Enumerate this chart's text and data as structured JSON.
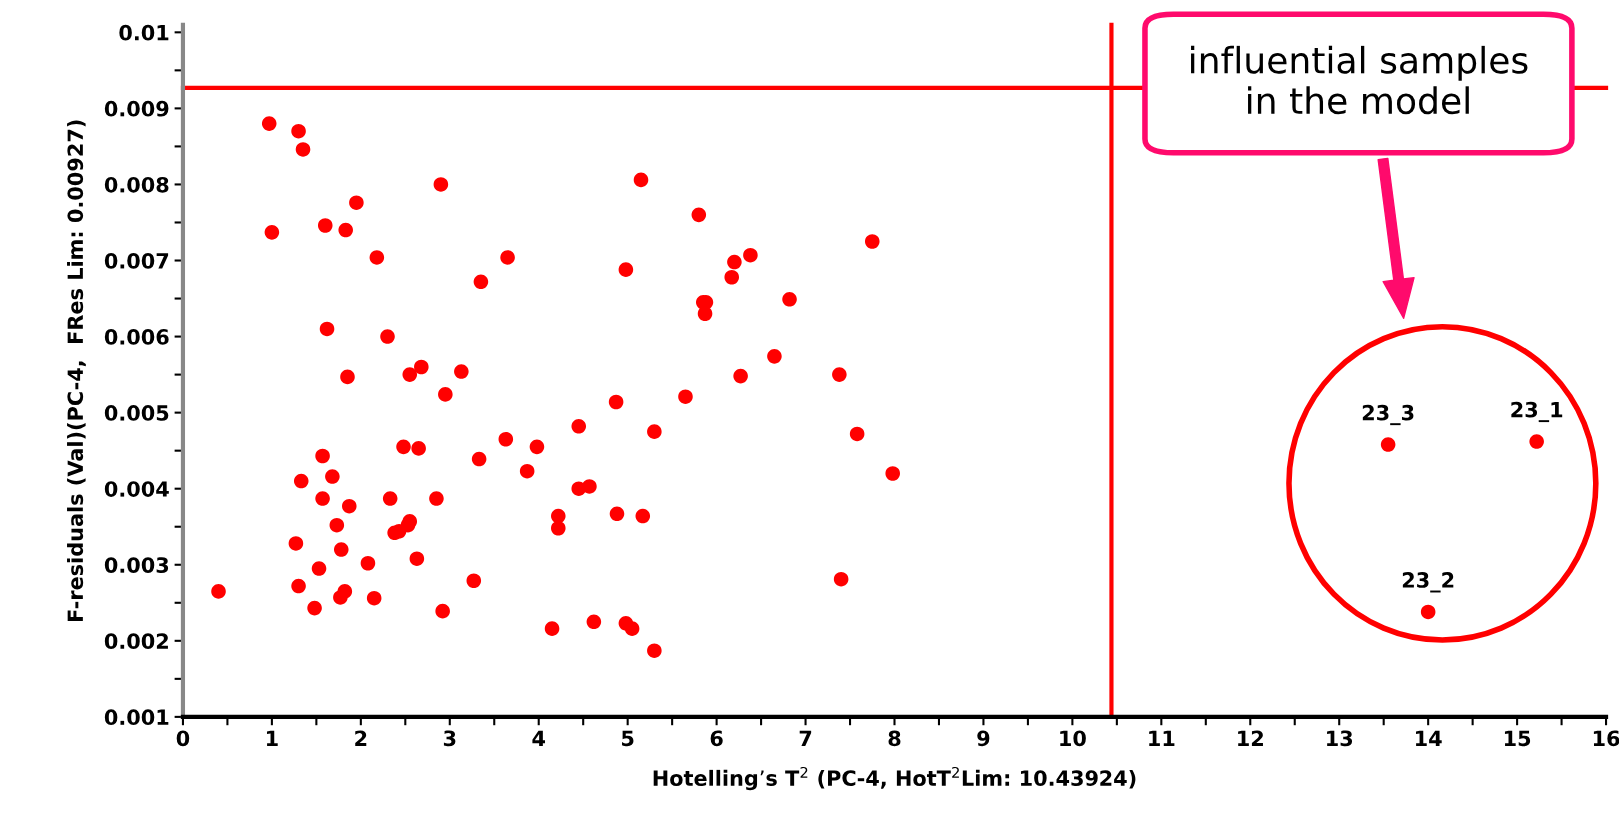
{
  "chart_data": {
    "type": "scatter",
    "xlabel": "Hotelling’s T$^{2}$ (PC-4, HotT$^{2}$Lim: 10.43924)",
    "ylabel": "F-residuals (Val)(PC-4,  FRes Lim: 0.00927)",
    "series": [
      {
        "color": "#ff0000",
        "x": [
          0.4,
          0.97,
          1.0,
          1.3,
          1.35,
          1.27,
          1.3,
          1.33,
          1.57,
          1.6,
          1.62,
          1.57,
          1.53,
          1.48,
          1.68,
          1.73,
          1.78,
          1.77,
          1.82,
          1.83,
          1.85,
          1.87,
          1.95,
          2.08,
          2.15,
          2.18,
          2.3,
          2.33,
          2.38,
          2.43,
          2.48,
          2.53,
          2.55,
          2.55,
          2.63,
          2.65,
          2.68,
          2.85,
          2.9,
          2.92,
          2.95,
          3.13,
          3.27,
          3.33,
          3.35,
          3.63,
          3.65,
          3.87,
          3.98,
          4.15,
          4.22,
          4.22,
          4.45,
          4.45,
          4.57,
          4.62,
          4.87,
          4.88,
          4.98,
          4.98,
          5.05,
          5.15,
          5.17,
          5.3,
          5.3,
          5.65,
          5.8,
          5.85,
          5.88,
          5.87,
          6.17,
          6.2,
          6.27,
          6.38,
          6.65,
          6.82,
          7.38,
          7.4,
          7.58,
          7.75,
          7.98,
          13.55,
          15.22,
          14.0
        ],
        "values": [
          0.00265,
          0.0088,
          0.00737,
          0.0087,
          0.00846,
          0.00328,
          0.00272,
          0.0041,
          0.00443,
          0.00746,
          0.0061,
          0.00387,
          0.00295,
          0.00243,
          0.00416,
          0.00352,
          0.0032,
          0.00257,
          0.00265,
          0.0074,
          0.00547,
          0.00377,
          0.00776,
          0.00302,
          0.00256,
          0.00704,
          0.006,
          0.00387,
          0.00342,
          0.00344,
          0.00455,
          0.00352,
          0.00357,
          0.0055,
          0.00308,
          0.00453,
          0.0056,
          0.00387,
          0.008,
          0.00239,
          0.00524,
          0.00554,
          0.00279,
          0.00439,
          0.00672,
          0.00465,
          0.00704,
          0.00423,
          0.00455,
          0.00216,
          0.00364,
          0.00348,
          0.00482,
          0.004,
          0.00403,
          0.00225,
          0.00514,
          0.00367,
          0.00688,
          0.00223,
          0.00216,
          0.00806,
          0.00364,
          0.00187,
          0.00475,
          0.00521,
          0.0076,
          0.00645,
          0.00645,
          0.0063,
          0.00678,
          0.00698,
          0.00548,
          0.00707,
          0.00574,
          0.00649,
          0.0055,
          0.00281,
          0.00472,
          0.00725,
          0.0042,
          0.00458,
          0.00462,
          0.00238
        ]
      }
    ],
    "marker": "circle",
    "xlim": [
      0,
      16
    ],
    "ylim": [
      0.001,
      0.0101
    ],
    "xticks": [
      0,
      {
        "value": 0.5,
        "label": null
      },
      1,
      {
        "value": 1.5,
        "label": null
      },
      2,
      {
        "value": 2.5,
        "label": null
      },
      3,
      {
        "value": 3.5,
        "label": null
      },
      4,
      {
        "value": 4.5,
        "label": null
      },
      5,
      {
        "value": 5.5,
        "label": null
      },
      6,
      {
        "value": 6.5,
        "label": null
      },
      7,
      {
        "value": 7.5,
        "label": null
      },
      8,
      {
        "value": 8.5,
        "label": null
      },
      9,
      {
        "value": 9.5,
        "label": null
      },
      10,
      {
        "value": 10.5,
        "label": null
      },
      11,
      {
        "value": 11.5,
        "label": null
      },
      12,
      {
        "value": 12.5,
        "label": null
      },
      13,
      {
        "value": 13.5,
        "label": null
      },
      14,
      {
        "value": 14.5,
        "label": null
      },
      15,
      {
        "value": 15.5,
        "label": null
      },
      16
    ],
    "yticks": [
      0.001,
      {
        "value": 0.0015,
        "label": null
      },
      0.002,
      {
        "value": 0.0025,
        "label": null
      },
      0.003,
      {
        "value": 0.0035,
        "label": null
      },
      0.004,
      {
        "value": 0.0045,
        "label": null
      },
      0.005,
      {
        "value": 0.0055,
        "label": null
      },
      0.006,
      {
        "value": 0.0065,
        "label": null
      },
      0.007,
      {
        "value": 0.0075,
        "label": null
      },
      0.008,
      {
        "value": 0.0085,
        "label": null
      },
      0.009,
      {
        "value": 0.0095,
        "label": null
      },
      0.01
    ],
    "ref_lines": [
      {
        "axis": "y",
        "value": 0.00927,
        "color": "#ff0000"
      },
      {
        "axis": "x",
        "value": 10.43924,
        "color": "#ff0000"
      }
    ],
    "annotations": [
      "influential samples\nin the model",
      {
        "text": "23_3",
        "x": 13.55,
        "y": 0.00458
      },
      {
        "text": "23_1",
        "x": 15.22,
        "y": 0.00462
      },
      {
        "text": "23_2",
        "x": 14.0,
        "y": 0.00238
      }
    ],
    "grid": false,
    "legend": false
  }
}
